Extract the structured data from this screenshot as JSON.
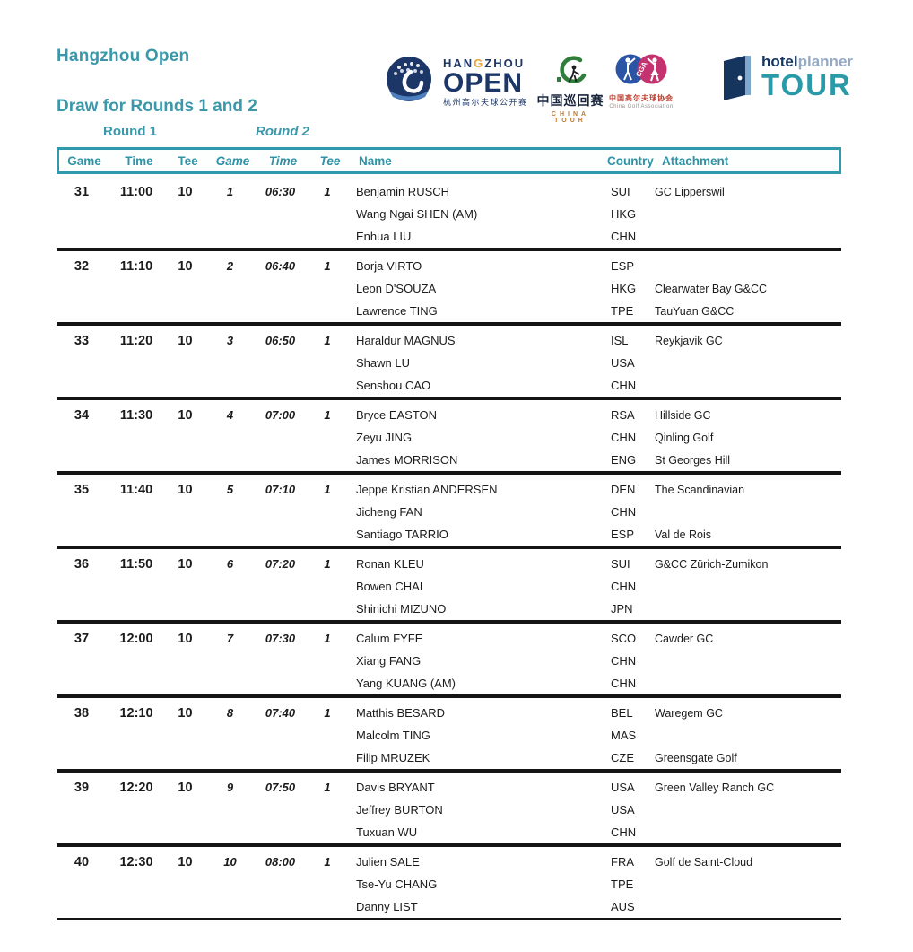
{
  "header": {
    "title": "Hangzhou Open",
    "subtitle": "Draw for Rounds 1 and 2",
    "round1_label": "Round 1",
    "round2_label": "Round 2"
  },
  "logos": {
    "hangzhou": {
      "han": "HAN",
      "g": "G",
      "zhou": "ZHOU",
      "open": "OPEN",
      "chinese": "杭州高尔夫球公开赛"
    },
    "china_tour": {
      "chinese": "中国巡回赛",
      "english": "CHINA TOUR"
    },
    "cga": {
      "acronym": "CGA",
      "chinese": "中国高尔夫球协会",
      "english": "China Golf Association"
    },
    "hotelplanner": {
      "hotel": "hotel",
      "planner": "planner",
      "tour": "TOUR"
    }
  },
  "colors": {
    "teal": "#3A98AA",
    "table_border": "#2E9AAC",
    "navy": "#1C3667",
    "accent_orange": "#E9A33C",
    "tour_green": "#2F7D3A",
    "cga_blue": "#2B55A4",
    "cga_pink": "#C4336F",
    "separator_black": "#141414"
  },
  "table": {
    "headers": {
      "game1": "Game",
      "time1": "Time",
      "tee1": "Tee",
      "game2": "Game",
      "time2": "Time",
      "tee2": "Tee",
      "name": "Name",
      "country": "Country",
      "attachment": "Attachment"
    },
    "groups": [
      {
        "game": "31",
        "time": "11:00",
        "tee": "10",
        "game2": "1",
        "time2": "06:30",
        "tee2": "1",
        "players": [
          {
            "name": "Benjamin RUSCH",
            "country": "SUI",
            "attachment": "GC Lipperswil"
          },
          {
            "name": "Wang Ngai SHEN (AM)",
            "country": "HKG",
            "attachment": ""
          },
          {
            "name": "Enhua LIU",
            "country": "CHN",
            "attachment": ""
          }
        ]
      },
      {
        "game": "32",
        "time": "11:10",
        "tee": "10",
        "game2": "2",
        "time2": "06:40",
        "tee2": "1",
        "players": [
          {
            "name": "Borja VIRTO",
            "country": "ESP",
            "attachment": ""
          },
          {
            "name": "Leon D'SOUZA",
            "country": "HKG",
            "attachment": "Clearwater Bay G&CC"
          },
          {
            "name": "Lawrence TING",
            "country": "TPE",
            "attachment": "TauYuan G&CC"
          }
        ]
      },
      {
        "game": "33",
        "time": "11:20",
        "tee": "10",
        "game2": "3",
        "time2": "06:50",
        "tee2": "1",
        "players": [
          {
            "name": "Haraldur MAGNUS",
            "country": "ISL",
            "attachment": "Reykjavik GC"
          },
          {
            "name": "Shawn LU",
            "country": "USA",
            "attachment": ""
          },
          {
            "name": "Senshou CAO",
            "country": "CHN",
            "attachment": ""
          }
        ]
      },
      {
        "game": "34",
        "time": "11:30",
        "tee": "10",
        "game2": "4",
        "time2": "07:00",
        "tee2": "1",
        "players": [
          {
            "name": "Bryce EASTON",
            "country": "RSA",
            "attachment": "Hillside GC"
          },
          {
            "name": "Zeyu JING",
            "country": "CHN",
            "attachment": "Qinling Golf"
          },
          {
            "name": "James MORRISON",
            "country": "ENG",
            "attachment": "St Georges Hill"
          }
        ]
      },
      {
        "game": "35",
        "time": "11:40",
        "tee": "10",
        "game2": "5",
        "time2": "07:10",
        "tee2": "1",
        "players": [
          {
            "name": "Jeppe Kristian ANDERSEN",
            "country": "DEN",
            "attachment": "The Scandinavian"
          },
          {
            "name": "Jicheng FAN",
            "country": "CHN",
            "attachment": ""
          },
          {
            "name": "Santiago TARRIO",
            "country": "ESP",
            "attachment": "Val de Rois"
          }
        ]
      },
      {
        "game": "36",
        "time": "11:50",
        "tee": "10",
        "game2": "6",
        "time2": "07:20",
        "tee2": "1",
        "players": [
          {
            "name": "Ronan KLEU",
            "country": "SUI",
            "attachment": "G&CC Zürich-Zumikon"
          },
          {
            "name": "Bowen CHAI",
            "country": "CHN",
            "attachment": ""
          },
          {
            "name": "Shinichi MIZUNO",
            "country": "JPN",
            "attachment": ""
          }
        ]
      },
      {
        "game": "37",
        "time": "12:00",
        "tee": "10",
        "game2": "7",
        "time2": "07:30",
        "tee2": "1",
        "players": [
          {
            "name": "Calum FYFE",
            "country": "SCO",
            "attachment": "Cawder GC"
          },
          {
            "name": "Xiang FANG",
            "country": "CHN",
            "attachment": ""
          },
          {
            "name": "Yang KUANG (AM)",
            "country": "CHN",
            "attachment": ""
          }
        ]
      },
      {
        "game": "38",
        "time": "12:10",
        "tee": "10",
        "game2": "8",
        "time2": "07:40",
        "tee2": "1",
        "players": [
          {
            "name": "Matthis BESARD",
            "country": "BEL",
            "attachment": "Waregem GC"
          },
          {
            "name": "Malcolm TING",
            "country": "MAS",
            "attachment": ""
          },
          {
            "name": "Filip MRUZEK",
            "country": "CZE",
            "attachment": "Greensgate Golf"
          }
        ]
      },
      {
        "game": "39",
        "time": "12:20",
        "tee": "10",
        "game2": "9",
        "time2": "07:50",
        "tee2": "1",
        "players": [
          {
            "name": "Davis BRYANT",
            "country": "USA",
            "attachment": "Green Valley Ranch GC"
          },
          {
            "name": "Jeffrey BURTON",
            "country": "USA",
            "attachment": ""
          },
          {
            "name": "Tuxuan WU",
            "country": "CHN",
            "attachment": ""
          }
        ]
      },
      {
        "game": "40",
        "time": "12:30",
        "tee": "10",
        "game2": "10",
        "time2": "08:00",
        "tee2": "1",
        "players": [
          {
            "name": "Julien SALE",
            "country": "FRA",
            "attachment": "Golf de Saint-Cloud"
          },
          {
            "name": "Tse-Yu CHANG",
            "country": "TPE",
            "attachment": ""
          },
          {
            "name": "Danny LIST",
            "country": "AUS",
            "attachment": ""
          }
        ]
      }
    ]
  }
}
